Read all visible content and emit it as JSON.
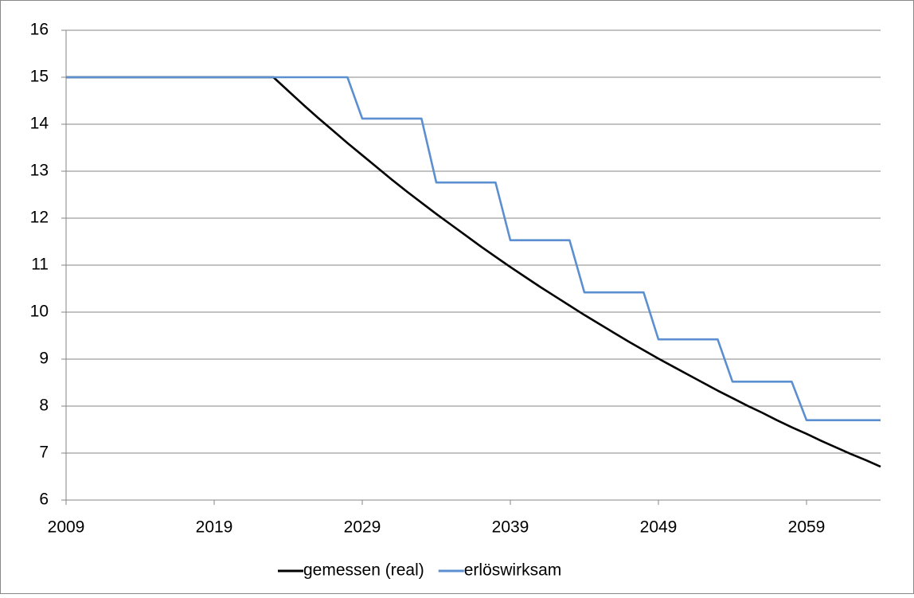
{
  "chart_data": {
    "type": "line",
    "x": [
      2009,
      2010,
      2011,
      2012,
      2013,
      2014,
      2015,
      2016,
      2017,
      2018,
      2019,
      2020,
      2021,
      2022,
      2023,
      2024,
      2025,
      2026,
      2027,
      2028,
      2029,
      2030,
      2031,
      2032,
      2033,
      2034,
      2035,
      2036,
      2037,
      2038,
      2039,
      2040,
      2041,
      2042,
      2043,
      2044,
      2045,
      2046,
      2047,
      2048,
      2049,
      2050,
      2051,
      2052,
      2053,
      2054,
      2055,
      2056,
      2057,
      2058,
      2059,
      2060,
      2061,
      2062,
      2063,
      2064
    ],
    "series": [
      {
        "name": "gemessen (real)",
        "color": "#000000",
        "values": [
          15,
          15,
          15,
          15,
          15,
          15,
          15,
          15,
          15,
          15,
          15,
          15,
          15,
          15,
          15,
          14.71,
          14.42,
          14.14,
          13.87,
          13.6,
          13.34,
          13.08,
          12.82,
          12.57,
          12.33,
          12.09,
          11.86,
          11.63,
          11.4,
          11.18,
          10.96,
          10.75,
          10.54,
          10.34,
          10.14,
          9.94,
          9.75,
          9.56,
          9.37,
          9.19,
          9.01,
          8.84,
          8.67,
          8.5,
          8.33,
          8.17,
          8.01,
          7.86,
          7.7,
          7.55,
          7.41,
          7.26,
          7.12,
          6.98,
          6.85,
          6.71
        ]
      },
      {
        "name": "erlöswirksam",
        "color": "#5b8fd0",
        "values": [
          15,
          15,
          15,
          15,
          15,
          15,
          15,
          15,
          15,
          15,
          15,
          15,
          15,
          15,
          15,
          15,
          15,
          15,
          15,
          15,
          14.12,
          14.12,
          14.12,
          14.12,
          14.12,
          12.76,
          12.76,
          12.76,
          12.76,
          12.76,
          11.53,
          11.53,
          11.53,
          11.53,
          11.53,
          10.42,
          10.42,
          10.42,
          10.42,
          10.42,
          9.42,
          9.42,
          9.42,
          9.42,
          9.42,
          8.52,
          8.52,
          8.52,
          8.52,
          8.52,
          7.7,
          7.7,
          7.7,
          7.7,
          7.7,
          7.7
        ]
      }
    ],
    "xlim": [
      2009,
      2064
    ],
    "xticks": [
      2009,
      2019,
      2029,
      2039,
      2049,
      2059
    ],
    "ylim": [
      6,
      16
    ],
    "yticks": [
      6,
      7,
      8,
      9,
      10,
      11,
      12,
      13,
      14,
      15,
      16
    ],
    "grid": true,
    "legend": "bottom"
  }
}
